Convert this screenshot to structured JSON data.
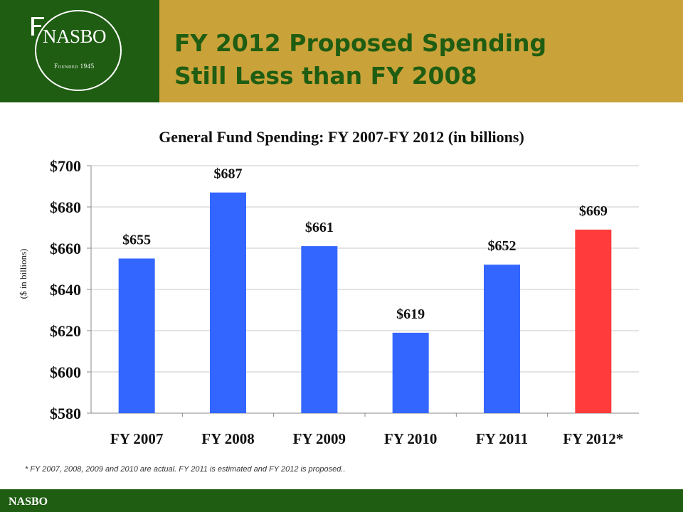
{
  "header": {
    "title": "FY 2012 Proposed Spending\nStill Less than FY 2008",
    "logo_text": "NASBO",
    "logo_subtitle": "Founded 1945"
  },
  "chart_data": {
    "type": "bar",
    "title": "General Fund Spending: FY 2007-FY 2012 (in billions)",
    "xlabel": "",
    "ylabel": "($ in billions)",
    "categories": [
      "FY 2007",
      "FY 2008",
      "FY 2009",
      "FY 2010",
      "FY 2011",
      "FY 2012*"
    ],
    "series": [
      {
        "values": [
          655,
          687,
          661,
          619,
          652,
          669
        ]
      }
    ],
    "data_labels": [
      "$655",
      "$687",
      "$661",
      "$619",
      "$652",
      "$669"
    ],
    "bar_colors": [
      "#3366ff",
      "#3366ff",
      "#3366ff",
      "#3366ff",
      "#3366ff",
      "#ff3b3b"
    ],
    "ylim": [
      580,
      700
    ],
    "yticks": [
      580,
      600,
      620,
      640,
      660,
      680,
      700
    ],
    "ytick_labels": [
      "$580",
      "$600",
      "$620",
      "$640",
      "$660",
      "$680",
      "$700"
    ],
    "grid": true,
    "legend": "none"
  },
  "footnote": "* FY 2007, 2008, 2009 and 2010 are actual.  FY 2011 is estimated and FY 2012 is proposed..",
  "footer": {
    "text": "NASBO"
  },
  "colors": {
    "dark_green": "#1f5d12",
    "gold": "#c9a23a",
    "bar_blue": "#3366ff",
    "bar_red": "#ff3b3b"
  }
}
